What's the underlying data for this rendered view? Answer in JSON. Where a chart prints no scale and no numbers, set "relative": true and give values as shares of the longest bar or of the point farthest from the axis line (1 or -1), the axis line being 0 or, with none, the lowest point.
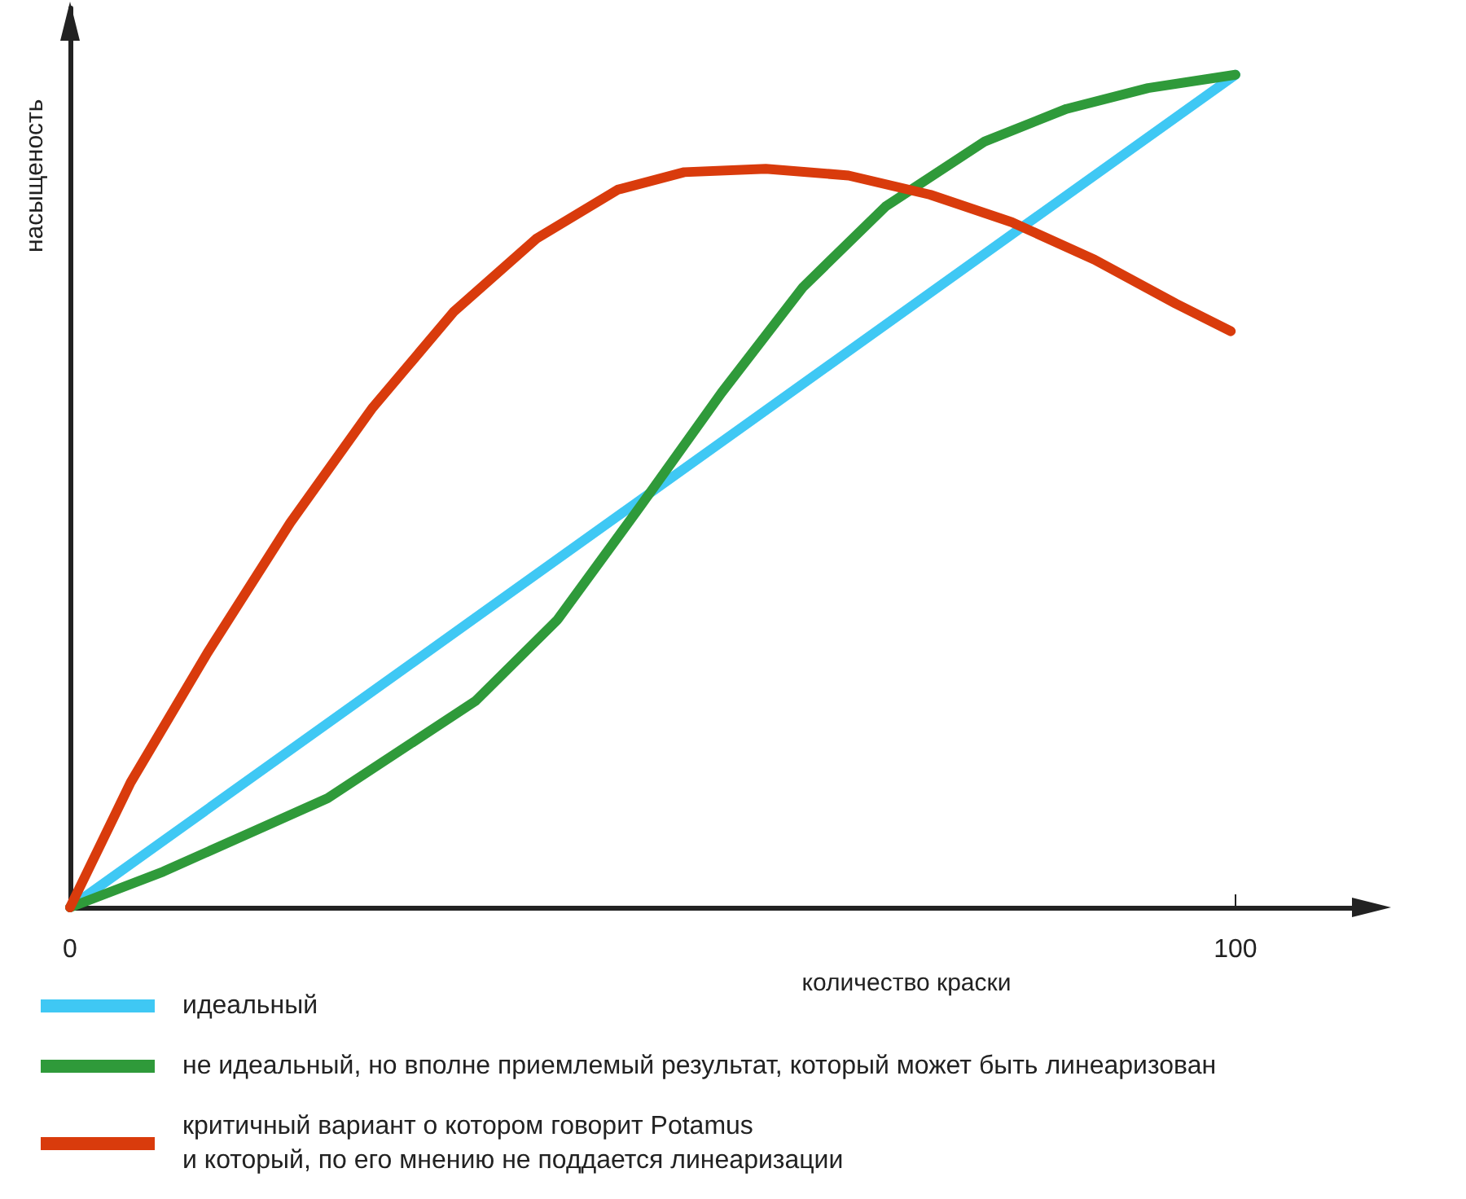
{
  "chart_data": {
    "type": "line",
    "relative": true,
    "xlabel": "количество краски",
    "ylabel": "насыщеность",
    "xlim": [
      0,
      110
    ],
    "xticks": [
      0,
      100
    ],
    "grid": false,
    "legend": "bottom left",
    "marker": "none",
    "line_style": "solid",
    "series": [
      {
        "name": "идеальный",
        "color": "#3fc8f4",
        "x": [
          0,
          100
        ],
        "values": [
          0,
          1
        ]
      },
      {
        "name": "не идеальный, но вполне приемлемый результат, который может быть линеаризован",
        "color": "#2f9a3a",
        "x": [
          0,
          8.0,
          22.1,
          34.8,
          41.8,
          48.9,
          55.9,
          62.9,
          70.0,
          78.5,
          85.5,
          92.5,
          100
        ],
        "values": [
          0,
          0.043,
          0.131,
          0.248,
          0.345,
          0.481,
          0.618,
          0.745,
          0.842,
          0.92,
          0.959,
          0.984,
          1
        ]
      },
      {
        "name": "критичный вариант о котором говорит Potamus\nи который, по его мнению не поддается линеаризации",
        "color": "#d93b0c",
        "x": [
          0,
          5.2,
          11.8,
          18.9,
          25.9,
          32.9,
          40.0,
          47.0,
          52.7,
          59.7,
          66.8,
          73.8,
          80.8,
          87.9,
          94.9,
          99.6
        ],
        "values": [
          0,
          0.15,
          0.306,
          0.462,
          0.599,
          0.715,
          0.803,
          0.862,
          0.883,
          0.887,
          0.879,
          0.856,
          0.823,
          0.778,
          0.725,
          0.692
        ]
      }
    ]
  }
}
